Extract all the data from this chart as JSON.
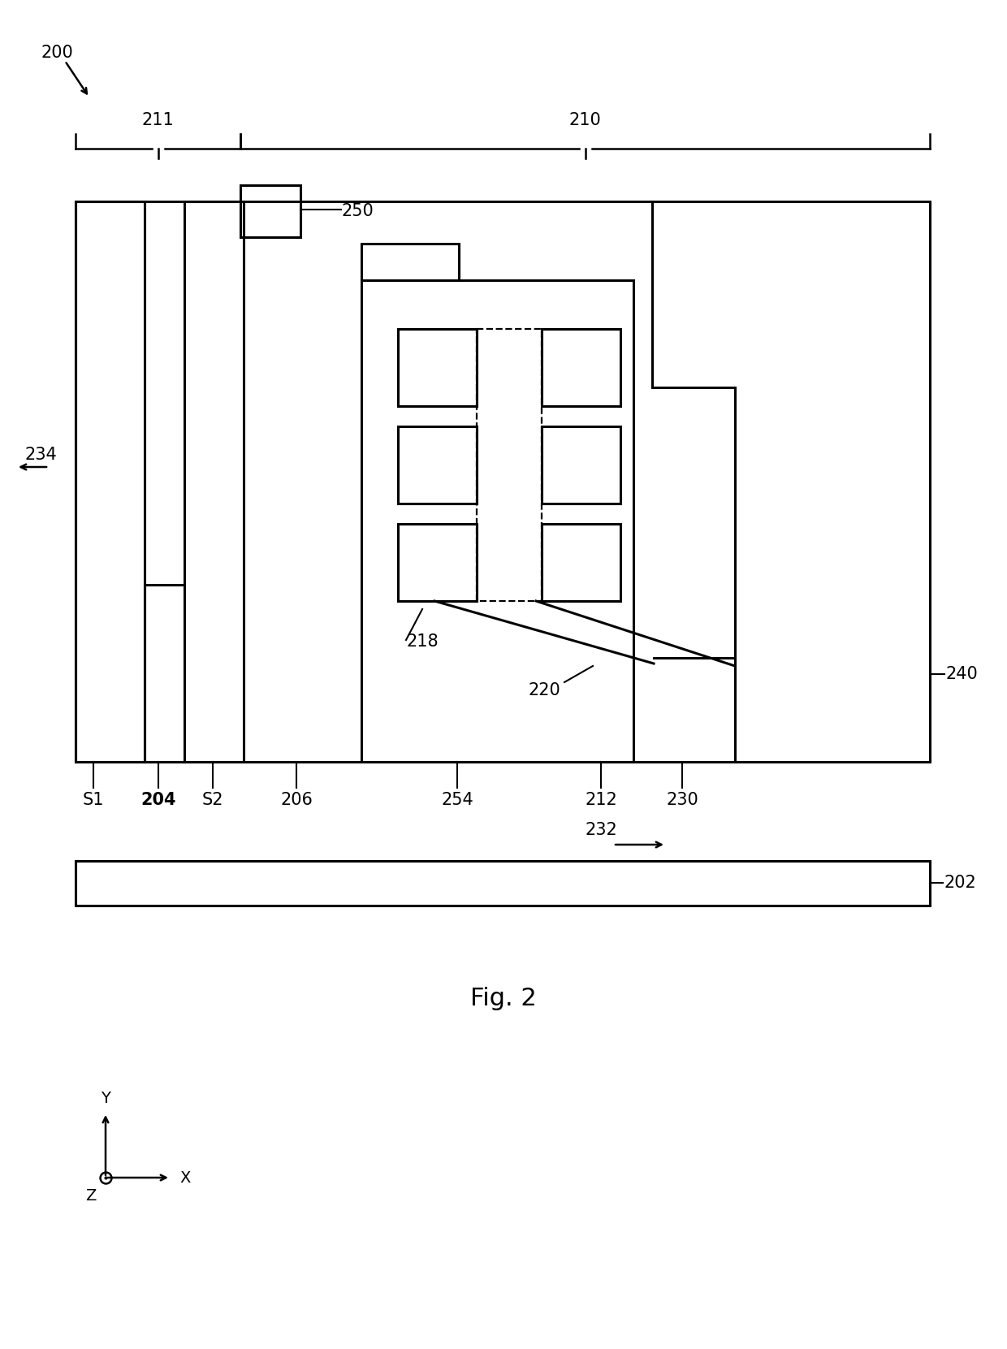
{
  "fig_width": 12.4,
  "fig_height": 16.61,
  "bg_color": "#ffffff",
  "line_color": "#000000",
  "lw": 2.2,
  "lw_thin": 1.6,
  "label_200": "200",
  "label_210": "210",
  "label_211": "211",
  "label_202": "202",
  "label_204": "204",
  "label_206": "206",
  "label_212": "212",
  "label_218": "218",
  "label_220": "220",
  "label_230": "230",
  "label_232": "232",
  "label_234": "234",
  "label_240": "240",
  "label_250": "250",
  "label_254": "254",
  "label_s1": "S1",
  "label_s2": "S2",
  "label_fig": "Fig. 2",
  "label_Y": "Y",
  "label_X": "X",
  "label_Z": "Z"
}
